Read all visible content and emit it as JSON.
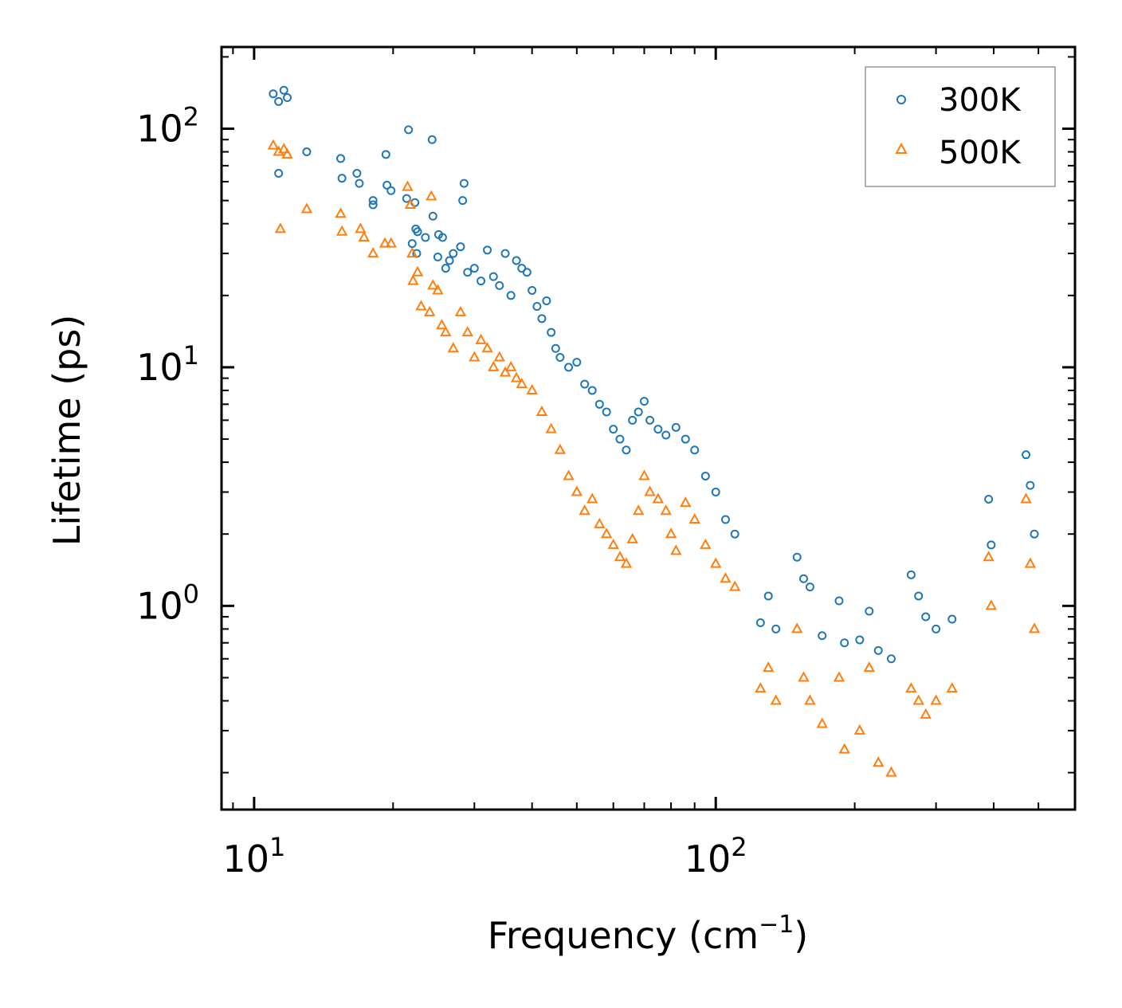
{
  "chart_data": {
    "type": "scatter",
    "title": "",
    "xlabel": "Frequency (cm⁻¹)",
    "xlabel_main": "Frequency (cm",
    "xlabel_sup": "−1",
    "xlabel_close": ")",
    "ylabel": "Lifetime (ps)",
    "xscale": "log",
    "yscale": "log",
    "xlim": [
      8.5,
      600
    ],
    "ylim": [
      0.14,
      220
    ],
    "x_ticks": [
      {
        "value": 10,
        "base": "10",
        "exp": "1"
      },
      {
        "value": 100,
        "base": "10",
        "exp": "2"
      }
    ],
    "y_ticks": [
      {
        "value": 1,
        "base": "10",
        "exp": "0"
      },
      {
        "value": 10,
        "base": "10",
        "exp": "1"
      },
      {
        "value": 100,
        "base": "10",
        "exp": "2"
      }
    ],
    "legend_position": "top-right",
    "series": [
      {
        "name": "300K",
        "marker": "circle",
        "color": "#1f77b4",
        "points": [
          [
            11.0,
            140
          ],
          [
            11.3,
            130
          ],
          [
            11.6,
            145
          ],
          [
            11.8,
            135
          ],
          [
            13.0,
            80
          ],
          [
            11.3,
            65
          ],
          [
            15.4,
            75
          ],
          [
            15.5,
            62
          ],
          [
            16.7,
            65
          ],
          [
            16.9,
            59
          ],
          [
            18.1,
            50
          ],
          [
            18.1,
            48
          ],
          [
            19.3,
            78
          ],
          [
            19.4,
            58
          ],
          [
            19.8,
            55
          ],
          [
            21.6,
            99
          ],
          [
            21.4,
            51
          ],
          [
            22.3,
            49
          ],
          [
            22.4,
            38
          ],
          [
            22.6,
            37
          ],
          [
            23.5,
            35
          ],
          [
            24.3,
            90
          ],
          [
            24.4,
            43
          ],
          [
            25.1,
            36
          ],
          [
            25.6,
            35
          ],
          [
            28.5,
            59
          ],
          [
            28.3,
            50
          ],
          [
            22.0,
            33
          ],
          [
            22.5,
            30
          ],
          [
            25.0,
            29
          ],
          [
            26.0,
            26
          ],
          [
            26.5,
            28
          ],
          [
            27.0,
            30
          ],
          [
            28.0,
            32
          ],
          [
            29.0,
            25
          ],
          [
            30.0,
            26
          ],
          [
            31.0,
            23
          ],
          [
            32.0,
            31
          ],
          [
            33.0,
            24
          ],
          [
            34.0,
            22
          ],
          [
            35.0,
            30
          ],
          [
            36.0,
            20
          ],
          [
            37.0,
            28
          ],
          [
            38.0,
            26
          ],
          [
            39.0,
            25
          ],
          [
            40.0,
            21
          ],
          [
            41.0,
            18
          ],
          [
            42.0,
            16
          ],
          [
            43.0,
            19
          ],
          [
            44.0,
            14
          ],
          [
            45.0,
            12
          ],
          [
            46.0,
            11
          ],
          [
            48.0,
            10
          ],
          [
            50.0,
            10.5
          ],
          [
            52.0,
            8.5
          ],
          [
            54.0,
            8.0
          ],
          [
            56.0,
            7.0
          ],
          [
            58.0,
            6.5
          ],
          [
            60.0,
            5.5
          ],
          [
            62.0,
            5.0
          ],
          [
            64.0,
            4.5
          ],
          [
            66.0,
            6.0
          ],
          [
            68.0,
            6.5
          ],
          [
            70.0,
            7.2
          ],
          [
            72.0,
            6.0
          ],
          [
            75.0,
            5.5
          ],
          [
            78.0,
            5.2
          ],
          [
            82.0,
            5.6
          ],
          [
            86.0,
            5.0
          ],
          [
            90.0,
            4.5
          ],
          [
            95.0,
            3.5
          ],
          [
            100.0,
            3.0
          ],
          [
            105.0,
            2.3
          ],
          [
            110.0,
            2.0
          ],
          [
            125.0,
            0.85
          ],
          [
            130.0,
            1.1
          ],
          [
            135.0,
            0.8
          ],
          [
            150.0,
            1.6
          ],
          [
            155.0,
            1.3
          ],
          [
            160.0,
            1.2
          ],
          [
            170.0,
            0.75
          ],
          [
            185.0,
            1.05
          ],
          [
            190.0,
            0.7
          ],
          [
            205.0,
            0.72
          ],
          [
            215.0,
            0.95
          ],
          [
            225.0,
            0.65
          ],
          [
            240.0,
            0.6
          ],
          [
            265.0,
            1.35
          ],
          [
            275.0,
            1.1
          ],
          [
            285.0,
            0.9
          ],
          [
            300.0,
            0.8
          ],
          [
            325.0,
            0.88
          ],
          [
            390.0,
            2.8
          ],
          [
            395.0,
            1.8
          ],
          [
            470.0,
            4.3
          ],
          [
            480.0,
            3.2
          ],
          [
            490.0,
            2.0
          ]
        ]
      },
      {
        "name": "500K",
        "marker": "triangle",
        "color": "#ff7f0e",
        "points": [
          [
            11.0,
            85
          ],
          [
            11.3,
            80
          ],
          [
            11.6,
            82
          ],
          [
            11.8,
            78
          ],
          [
            11.4,
            38
          ],
          [
            13.0,
            46
          ],
          [
            15.4,
            44
          ],
          [
            15.5,
            37
          ],
          [
            17.0,
            38
          ],
          [
            17.3,
            35
          ],
          [
            18.1,
            30
          ],
          [
            19.2,
            33
          ],
          [
            19.8,
            33
          ],
          [
            21.5,
            57
          ],
          [
            21.8,
            48
          ],
          [
            22.1,
            23
          ],
          [
            22.6,
            25
          ],
          [
            24.2,
            52
          ],
          [
            24.4,
            22
          ],
          [
            25.0,
            21
          ],
          [
            22.0,
            30
          ],
          [
            23.0,
            18
          ],
          [
            24.0,
            17
          ],
          [
            25.5,
            15
          ],
          [
            26.0,
            14
          ],
          [
            27.0,
            12
          ],
          [
            28.0,
            17
          ],
          [
            29.0,
            14
          ],
          [
            30.0,
            11
          ],
          [
            31.0,
            13
          ],
          [
            32.0,
            12
          ],
          [
            33.0,
            10
          ],
          [
            34.0,
            11
          ],
          [
            35.0,
            9.5
          ],
          [
            36.0,
            10
          ],
          [
            37.0,
            9
          ],
          [
            38.0,
            8.5
          ],
          [
            40.0,
            8
          ],
          [
            42.0,
            6.5
          ],
          [
            44.0,
            5.5
          ],
          [
            46.0,
            4.5
          ],
          [
            48.0,
            3.5
          ],
          [
            50.0,
            3.0
          ],
          [
            52.0,
            2.5
          ],
          [
            54.0,
            2.8
          ],
          [
            56.0,
            2.2
          ],
          [
            58.0,
            2.0
          ],
          [
            60.0,
            1.8
          ],
          [
            62.0,
            1.6
          ],
          [
            64.0,
            1.5
          ],
          [
            66.0,
            1.9
          ],
          [
            68.0,
            2.5
          ],
          [
            70.0,
            3.5
          ],
          [
            72.0,
            3.0
          ],
          [
            75.0,
            2.8
          ],
          [
            78.0,
            2.5
          ],
          [
            80.0,
            2.0
          ],
          [
            82.0,
            1.7
          ],
          [
            86.0,
            2.7
          ],
          [
            90.0,
            2.3
          ],
          [
            95.0,
            1.8
          ],
          [
            100.0,
            1.5
          ],
          [
            105.0,
            1.3
          ],
          [
            110.0,
            1.2
          ],
          [
            125.0,
            0.45
          ],
          [
            130.0,
            0.55
          ],
          [
            135.0,
            0.4
          ],
          [
            150.0,
            0.8
          ],
          [
            155.0,
            0.5
          ],
          [
            160.0,
            0.4
          ],
          [
            170.0,
            0.32
          ],
          [
            185.0,
            0.5
          ],
          [
            190.0,
            0.25
          ],
          [
            205.0,
            0.3
          ],
          [
            215.0,
            0.55
          ],
          [
            225.0,
            0.22
          ],
          [
            240.0,
            0.2
          ],
          [
            265.0,
            0.45
          ],
          [
            275.0,
            0.4
          ],
          [
            285.0,
            0.35
          ],
          [
            300.0,
            0.4
          ],
          [
            325.0,
            0.45
          ],
          [
            390.0,
            1.6
          ],
          [
            395.0,
            1.0
          ],
          [
            470.0,
            2.8
          ],
          [
            480.0,
            1.5
          ],
          [
            490.0,
            0.8
          ]
        ]
      }
    ]
  },
  "colors": {
    "series_300K": "#1f77b4",
    "series_500K": "#ff7f0e",
    "axes": "#000000",
    "legend_border": "#999999"
  }
}
